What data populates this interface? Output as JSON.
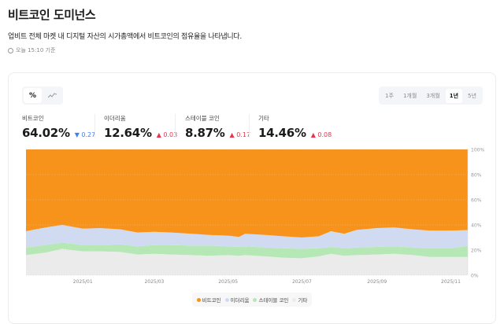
{
  "header": {
    "title": "비트코인 도미넌스",
    "description": "업비트 전체 마켓 내 디지털 자산의 시가총액에서 비트코인의 점유율을 나타냅니다.",
    "timestamp": "오늘 15:10 기준",
    "timestamp_icon": "clock-icon"
  },
  "view_toggle": [
    {
      "label": "%",
      "icon": "percent-icon",
      "active": true
    },
    {
      "label": "",
      "icon": "line-chart-icon",
      "active": false
    }
  ],
  "ranges": [
    {
      "label": "1주",
      "active": false
    },
    {
      "label": "1개월",
      "active": false
    },
    {
      "label": "3개월",
      "active": false
    },
    {
      "label": "1년",
      "active": true
    },
    {
      "label": "5년",
      "active": false
    }
  ],
  "stats": [
    {
      "name": "비트코인",
      "value": "64.02%",
      "change": "0.27",
      "direction": "down"
    },
    {
      "name": "이더리움",
      "value": "12.64%",
      "change": "0.03",
      "direction": "up"
    },
    {
      "name": "스테이블 코인",
      "value": "8.87%",
      "change": "0.17",
      "direction": "up"
    },
    {
      "name": "기타",
      "value": "14.46%",
      "change": "0.08",
      "direction": "up"
    }
  ],
  "colors": {
    "up": "#e8344e",
    "down": "#3f7ef5"
  },
  "chart_data": {
    "type": "area",
    "stacked": true,
    "normalized": true,
    "x": [
      "2024-11-15",
      "2024-12-01",
      "2024-12-15",
      "2025-01-01",
      "2025-01-15",
      "2025-02-01",
      "2025-02-15",
      "2025-03-01",
      "2025-03-15",
      "2025-04-01",
      "2025-04-15",
      "2025-05-01",
      "2025-05-10",
      "2025-05-15",
      "2025-06-01",
      "2025-06-15",
      "2025-07-01",
      "2025-07-15",
      "2025-07-25",
      "2025-08-05",
      "2025-08-15",
      "2025-09-01",
      "2025-09-15",
      "2025-10-01",
      "2025-10-15",
      "2025-11-01",
      "2025-11-15"
    ],
    "series": [
      {
        "name": "기타",
        "color": "#ebebeb",
        "values": [
          16,
          18,
          21,
          19,
          19,
          18.5,
          16.5,
          17,
          16.5,
          16,
          15.5,
          16,
          15.5,
          16,
          15,
          14,
          13.5,
          15,
          17,
          15.5,
          16,
          16.5,
          17,
          16,
          14.5,
          14.5,
          14.46
        ]
      },
      {
        "name": "스테이블 코인",
        "color": "#b5e8b5",
        "values": [
          6,
          6,
          5,
          5,
          5,
          6,
          6.5,
          7,
          7.5,
          7.5,
          8,
          7,
          7,
          7,
          7,
          7.5,
          7.5,
          6.5,
          5.5,
          6,
          6,
          6,
          6,
          6,
          7,
          7,
          8.87
        ]
      },
      {
        "name": "이더리움",
        "color": "#d0dbf2",
        "values": [
          13,
          14,
          14,
          13,
          13.5,
          12,
          11,
          10.5,
          10,
          9.5,
          8.5,
          8.5,
          8,
          10,
          10,
          9.5,
          9,
          9.5,
          12.5,
          11.5,
          14,
          15,
          15,
          14.5,
          14,
          14,
          12.64
        ]
      },
      {
        "name": "비트코인",
        "color": "#f7931a",
        "values": [
          65,
          62,
          60,
          63,
          62.5,
          63.5,
          66,
          65.5,
          66,
          67,
          68,
          68.5,
          69.5,
          67,
          68,
          69,
          70,
          69,
          65,
          67,
          64,
          62.5,
          62,
          63.5,
          64.5,
          64.5,
          64.02
        ]
      }
    ],
    "x_ticks": [
      "2025/01",
      "2025/03",
      "2025/05",
      "2025/07",
      "2025/09",
      "2025/11"
    ],
    "y_ticks": [
      "0%",
      "20%",
      "40%",
      "60%",
      "80%",
      "100%"
    ],
    "ylim": [
      0,
      100
    ],
    "grid": true,
    "legend": "bottom"
  }
}
